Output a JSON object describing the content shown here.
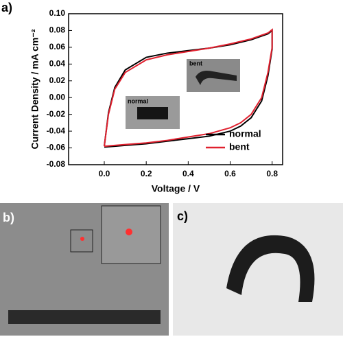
{
  "chart_data": {
    "type": "line",
    "x_label": "Voltage / V",
    "y_label": "Current Density  / mA cm⁻²",
    "x": [
      0,
      0.02,
      0.05,
      0.1,
      0.2,
      0.3,
      0.4,
      0.5,
      0.6,
      0.7,
      0.78,
      0.8,
      0.8,
      0.78,
      0.75,
      0.7,
      0.65,
      0.6,
      0.5,
      0.4,
      0.3,
      0.2,
      0.1,
      0
    ],
    "series": [
      {
        "name": "normal",
        "color": "#000000",
        "values": [
          -0.058,
          -0.018,
          0.012,
          0.033,
          0.048,
          0.053,
          0.056,
          0.059,
          0.063,
          0.069,
          0.076,
          0.08,
          0.058,
          0.026,
          -0.004,
          -0.024,
          -0.034,
          -0.04,
          -0.046,
          -0.049,
          -0.052,
          -0.055,
          -0.057,
          -0.059
        ]
      },
      {
        "name": "bent",
        "color": "#e0202e",
        "values": [
          -0.058,
          -0.02,
          0.01,
          0.03,
          0.045,
          0.051,
          0.055,
          0.059,
          0.064,
          0.07,
          0.077,
          0.081,
          0.06,
          0.03,
          0.0,
          -0.02,
          -0.03,
          -0.036,
          -0.043,
          -0.047,
          -0.051,
          -0.054,
          -0.056,
          -0.058
        ]
      }
    ],
    "xlim": [
      -0.17,
      0.85
    ],
    "ylim": [
      -0.08,
      0.1
    ],
    "xticks": [
      {
        "value": 0,
        "label": "0.0"
      },
      0.2,
      0.4,
      0.6,
      0.8
    ],
    "yticks": [
      -0.08,
      -0.06,
      -0.04,
      -0.02,
      {
        "value": 0,
        "label": "0.00"
      },
      0.02,
      0.04,
      0.06,
      0.08,
      {
        "value": 0.1,
        "label": "0.10"
      }
    ],
    "legend": "lower right",
    "annotations": [
      "bent",
      "normal"
    ]
  },
  "panels": [
    "a)",
    "b)",
    "c)"
  ]
}
